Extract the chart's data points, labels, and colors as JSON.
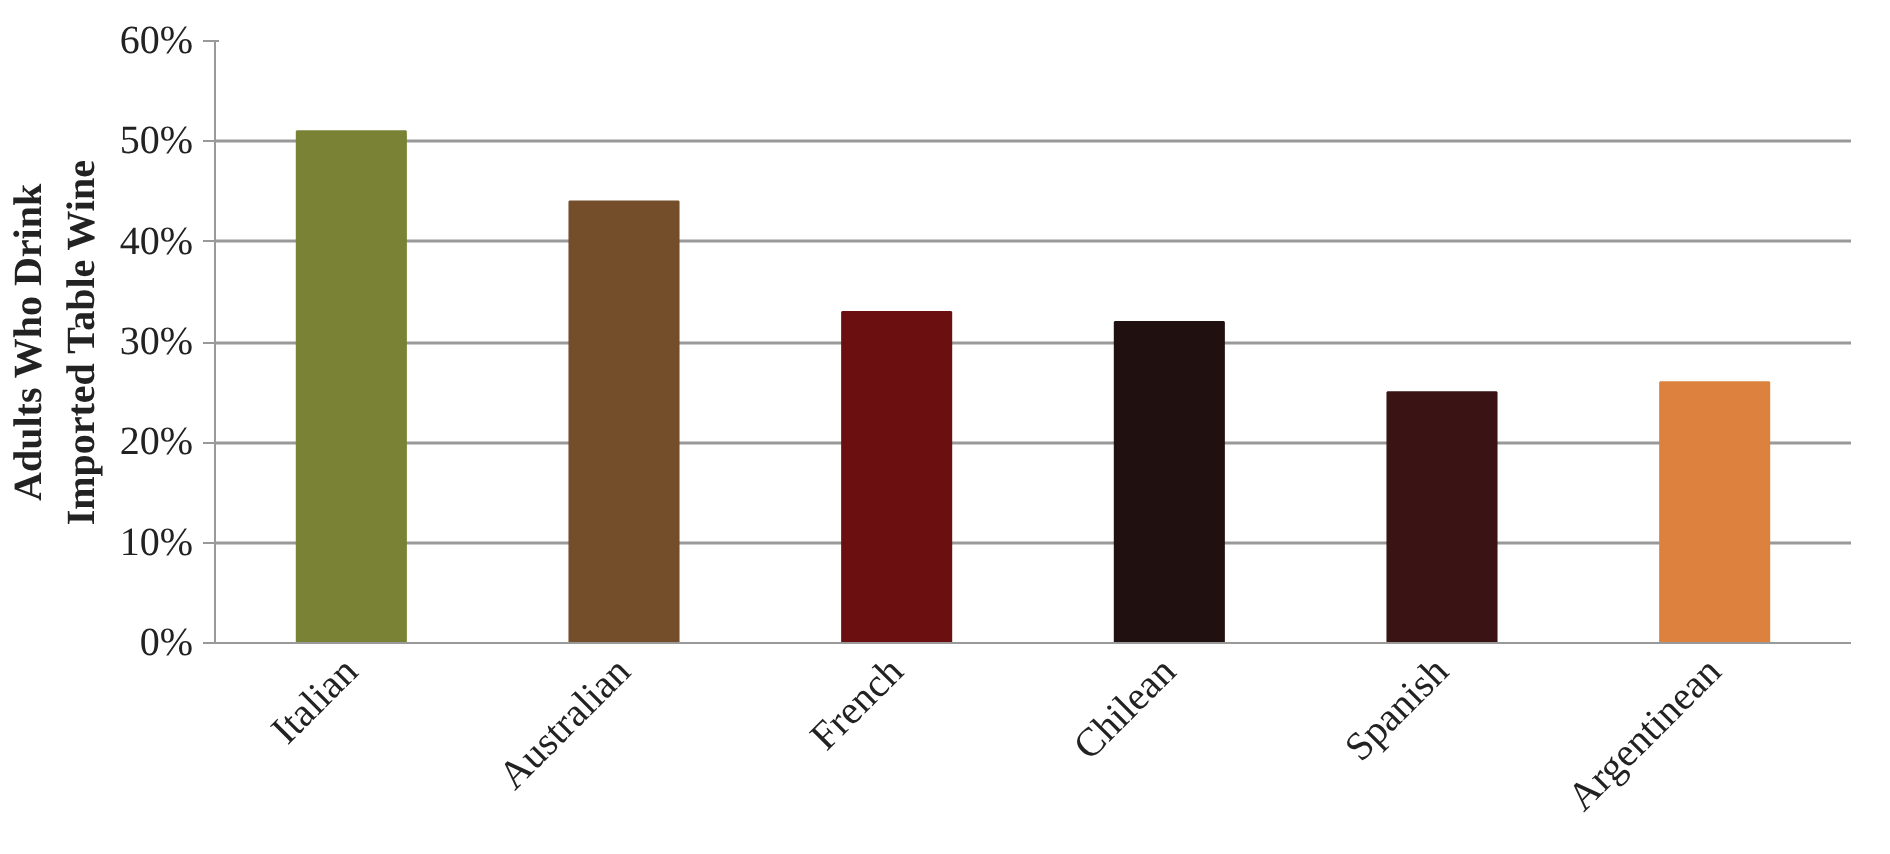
{
  "chart_data": {
    "type": "bar",
    "ylabel": "Adults Who Drink\nImported Table Wine",
    "categories": [
      "Italian",
      "Australian",
      "French",
      "Chilean",
      "Spanish",
      "Argentinean"
    ],
    "values": [
      51,
      44,
      33,
      32,
      25,
      26
    ],
    "colors": [
      "#7a8235",
      "#744e2a",
      "#6b0f10",
      "#211010",
      "#3a1414",
      "#dc823e"
    ],
    "ylim": [
      0,
      60
    ],
    "yticks": [
      {
        "value": 0,
        "label": "0%"
      },
      {
        "value": 10,
        "label": "10%"
      },
      {
        "value": 20,
        "label": "20%"
      },
      {
        "value": 30,
        "label": "30%"
      },
      {
        "value": 40,
        "label": "40%"
      },
      {
        "value": 50,
        "label": "50%"
      },
      {
        "value": 60,
        "label": "60%"
      }
    ],
    "grid": "y"
  }
}
